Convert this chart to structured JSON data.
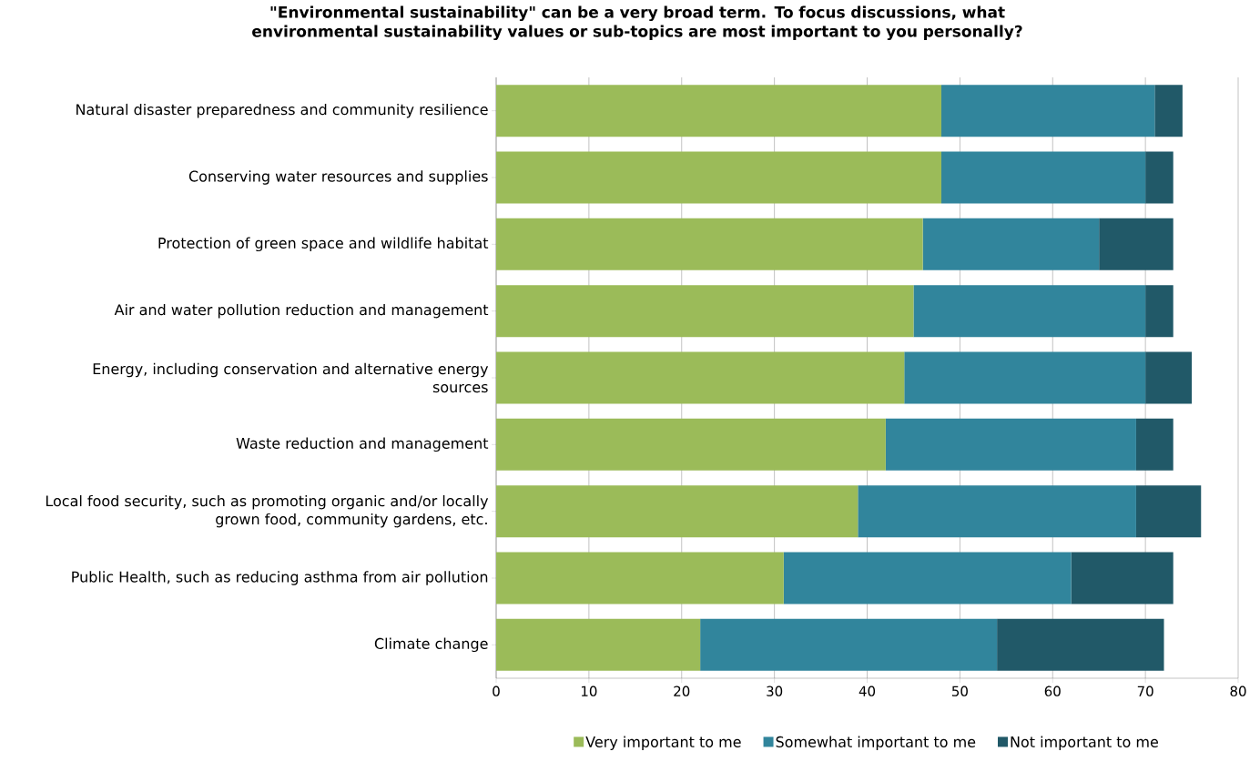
{
  "chart_data": {
    "type": "bar",
    "orientation": "horizontal",
    "stacked": true,
    "title": "\"Environmental sustainability\" can be a very broad term. To focus discussions, what environmental sustainability values or sub-topics are most important to you personally?",
    "categories": [
      "Natural disaster preparedness and community resilience",
      "Conserving water resources and supplies",
      "Protection of green space and wildlife habitat",
      "Air and water pollution reduction and management",
      "Energy, including conservation and alternative energy sources",
      "Waste reduction and management",
      "Local food security, such as promoting organic and/or locally grown food, community gardens, etc.",
      "Public Health, such as reducing asthma from air pollution",
      "Climate change"
    ],
    "series": [
      {
        "name": "Very important to me",
        "color": "#9bbb59",
        "values": [
          48,
          48,
          46,
          45,
          44,
          42,
          39,
          31,
          22
        ]
      },
      {
        "name": "Somewhat important to me",
        "color": "#31859c",
        "values": [
          23,
          22,
          19,
          25,
          26,
          27,
          30,
          31,
          32
        ]
      },
      {
        "name": "Not important to me",
        "color": "#215968",
        "values": [
          3,
          3,
          8,
          3,
          5,
          4,
          7,
          11,
          18
        ]
      }
    ],
    "xlim": [
      0,
      80
    ],
    "xticks": [
      0,
      10,
      20,
      30,
      40,
      50,
      60,
      70,
      80
    ],
    "grid": "x",
    "legend": "bottom"
  }
}
